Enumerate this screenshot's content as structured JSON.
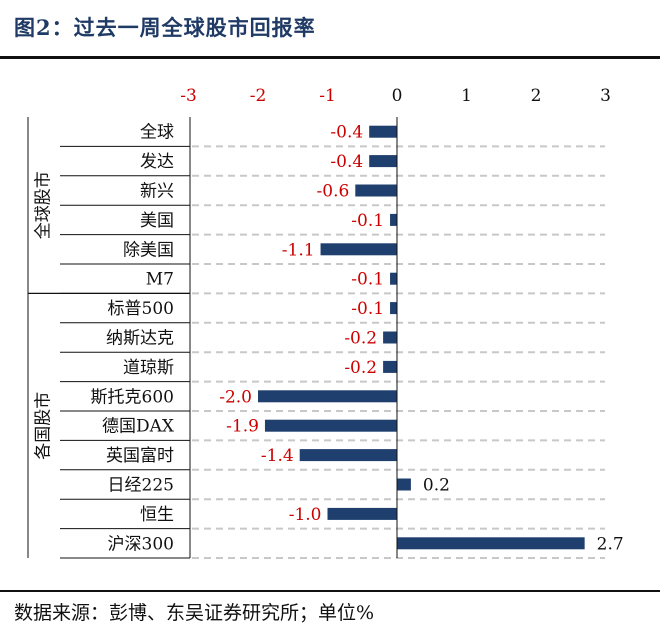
{
  "header": {
    "title": "图2：过去一周全球股市回报率"
  },
  "footer": {
    "source": "数据来源：彭博、东吴证券研究所；单位%"
  },
  "colors": {
    "bar": "#1f3f6e",
    "negative_label": "#cc0000",
    "positive_label": "#111111",
    "tick_label": "#cc0000",
    "gridline": "#c8c8c8"
  },
  "chart_data": {
    "type": "bar",
    "orientation": "horizontal",
    "title": "",
    "xlabel": "",
    "ylabel": "",
    "xlim": [
      -3,
      3
    ],
    "xticks": [
      "-3",
      "-2",
      "-1",
      "0",
      "1",
      "2",
      "3"
    ],
    "xtick_values": [
      -3,
      -2,
      -1,
      0,
      1,
      2,
      3
    ],
    "categories": [
      "全球",
      "发达",
      "新兴",
      "美国",
      "除美国",
      "M7",
      "标普500",
      "纳斯达克",
      "道琼斯",
      "斯托克600",
      "德国DAX",
      "英国富时",
      "日经225",
      "恒生",
      "沪深300"
    ],
    "values": [
      -0.4,
      -0.4,
      -0.6,
      -0.1,
      -1.1,
      -0.1,
      -0.1,
      -0.2,
      -0.2,
      -2.0,
      -1.9,
      -1.4,
      0.2,
      -1.0,
      2.7
    ],
    "value_labels": [
      "-0.4",
      "-0.4",
      "-0.6",
      "-0.1",
      "-1.1",
      "-0.1",
      "-0.1",
      "-0.2",
      "-0.2",
      "-2.0",
      "-1.9",
      "-1.4",
      "0.2",
      "-1.0",
      "2.7"
    ],
    "groups": [
      {
        "name": "全球股市",
        "start": 0,
        "count": 6
      },
      {
        "name": "各国股市",
        "start": 6,
        "count": 9
      }
    ],
    "grid": true,
    "legend": "none"
  }
}
